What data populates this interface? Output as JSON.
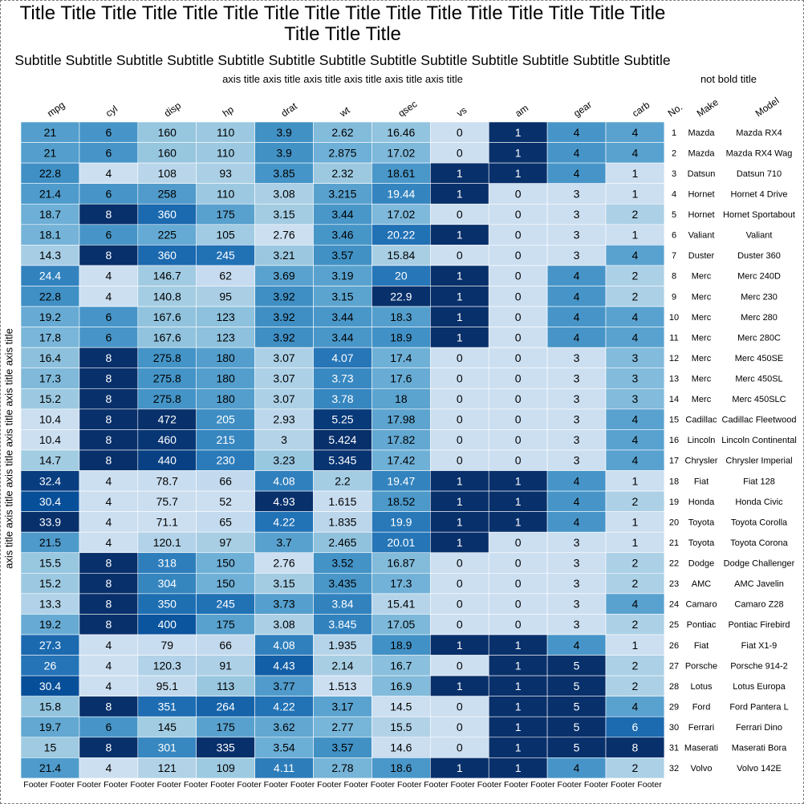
{
  "title": "Title Title Title Title Title Title Title Title Title Title Title Title Title Title Title Title Title Title Title",
  "subtitle": "Subtitle Subtitle Subtitle Subtitle Subtitle Subtitle Subtitle Subtitle Subtitle Subtitle Subtitle Subtitle Subtitle",
  "footer": "Footer Footer Footer Footer Footer Footer Footer Footer Footer Footer Footer Footer Footer Footer Footer Footer Footer Footer Footer Footer Footer Footer Footer Footer",
  "chart_data": {
    "type": "heatmap",
    "xlabel": "axis title axis title axis title axis title axis title axis title",
    "ylabel": "axis title axis title axis title axis title axis title axis title",
    "side_title": "not bold title",
    "columns": [
      "mpg",
      "cyl",
      "disp",
      "hp",
      "drat",
      "wt",
      "qsec",
      "vs",
      "am",
      "gear",
      "carb"
    ],
    "side_columns": [
      "No.",
      "Make",
      "Model"
    ],
    "colormap": "Blues",
    "rows": [
      {
        "no": "1",
        "make": "Mazda",
        "model": "Mazda RX4",
        "values": [
          "21",
          "6",
          "160",
          "110",
          "3.9",
          "2.62",
          "16.46",
          "0",
          "1",
          "4",
          "4"
        ]
      },
      {
        "no": "2",
        "make": "Mazda",
        "model": "Mazda RX4 Wag",
        "values": [
          "21",
          "6",
          "160",
          "110",
          "3.9",
          "2.875",
          "17.02",
          "0",
          "1",
          "4",
          "4"
        ]
      },
      {
        "no": "3",
        "make": "Datsun",
        "model": "Datsun 710",
        "values": [
          "22.8",
          "4",
          "108",
          "93",
          "3.85",
          "2.32",
          "18.61",
          "1",
          "1",
          "4",
          "1"
        ]
      },
      {
        "no": "4",
        "make": "Hornet",
        "model": "Hornet 4 Drive",
        "values": [
          "21.4",
          "6",
          "258",
          "110",
          "3.08",
          "3.215",
          "19.44",
          "1",
          "0",
          "3",
          "1"
        ]
      },
      {
        "no": "5",
        "make": "Hornet",
        "model": "Hornet Sportabout",
        "values": [
          "18.7",
          "8",
          "360",
          "175",
          "3.15",
          "3.44",
          "17.02",
          "0",
          "0",
          "3",
          "2"
        ]
      },
      {
        "no": "6",
        "make": "Valiant",
        "model": "Valiant",
        "values": [
          "18.1",
          "6",
          "225",
          "105",
          "2.76",
          "3.46",
          "20.22",
          "1",
          "0",
          "3",
          "1"
        ]
      },
      {
        "no": "7",
        "make": "Duster",
        "model": "Duster 360",
        "values": [
          "14.3",
          "8",
          "360",
          "245",
          "3.21",
          "3.57",
          "15.84",
          "0",
          "0",
          "3",
          "4"
        ]
      },
      {
        "no": "8",
        "make": "Merc",
        "model": "Merc 240D",
        "values": [
          "24.4",
          "4",
          "146.7",
          "62",
          "3.69",
          "3.19",
          "20",
          "1",
          "0",
          "4",
          "2"
        ]
      },
      {
        "no": "9",
        "make": "Merc",
        "model": "Merc 230",
        "values": [
          "22.8",
          "4",
          "140.8",
          "95",
          "3.92",
          "3.15",
          "22.9",
          "1",
          "0",
          "4",
          "2"
        ]
      },
      {
        "no": "10",
        "make": "Merc",
        "model": "Merc 280",
        "values": [
          "19.2",
          "6",
          "167.6",
          "123",
          "3.92",
          "3.44",
          "18.3",
          "1",
          "0",
          "4",
          "4"
        ]
      },
      {
        "no": "11",
        "make": "Merc",
        "model": "Merc 280C",
        "values": [
          "17.8",
          "6",
          "167.6",
          "123",
          "3.92",
          "3.44",
          "18.9",
          "1",
          "0",
          "4",
          "4"
        ]
      },
      {
        "no": "12",
        "make": "Merc",
        "model": "Merc 450SE",
        "values": [
          "16.4",
          "8",
          "275.8",
          "180",
          "3.07",
          "4.07",
          "17.4",
          "0",
          "0",
          "3",
          "3"
        ]
      },
      {
        "no": "13",
        "make": "Merc",
        "model": "Merc 450SL",
        "values": [
          "17.3",
          "8",
          "275.8",
          "180",
          "3.07",
          "3.73",
          "17.6",
          "0",
          "0",
          "3",
          "3"
        ]
      },
      {
        "no": "14",
        "make": "Merc",
        "model": "Merc 450SLC",
        "values": [
          "15.2",
          "8",
          "275.8",
          "180",
          "3.07",
          "3.78",
          "18",
          "0",
          "0",
          "3",
          "3"
        ]
      },
      {
        "no": "15",
        "make": "Cadillac",
        "model": "Cadillac Fleetwood",
        "values": [
          "10.4",
          "8",
          "472",
          "205",
          "2.93",
          "5.25",
          "17.98",
          "0",
          "0",
          "3",
          "4"
        ]
      },
      {
        "no": "16",
        "make": "Lincoln",
        "model": "Lincoln Continental",
        "values": [
          "10.4",
          "8",
          "460",
          "215",
          "3",
          "5.424",
          "17.82",
          "0",
          "0",
          "3",
          "4"
        ]
      },
      {
        "no": "17",
        "make": "Chrysler",
        "model": "Chrysler Imperial",
        "values": [
          "14.7",
          "8",
          "440",
          "230",
          "3.23",
          "5.345",
          "17.42",
          "0",
          "0",
          "3",
          "4"
        ]
      },
      {
        "no": "18",
        "make": "Fiat",
        "model": "Fiat 128",
        "values": [
          "32.4",
          "4",
          "78.7",
          "66",
          "4.08",
          "2.2",
          "19.47",
          "1",
          "1",
          "4",
          "1"
        ]
      },
      {
        "no": "19",
        "make": "Honda",
        "model": "Honda Civic",
        "values": [
          "30.4",
          "4",
          "75.7",
          "52",
          "4.93",
          "1.615",
          "18.52",
          "1",
          "1",
          "4",
          "2"
        ]
      },
      {
        "no": "20",
        "make": "Toyota",
        "model": "Toyota Corolla",
        "values": [
          "33.9",
          "4",
          "71.1",
          "65",
          "4.22",
          "1.835",
          "19.9",
          "1",
          "1",
          "4",
          "1"
        ]
      },
      {
        "no": "21",
        "make": "Toyota",
        "model": "Toyota Corona",
        "values": [
          "21.5",
          "4",
          "120.1",
          "97",
          "3.7",
          "2.465",
          "20.01",
          "1",
          "0",
          "3",
          "1"
        ]
      },
      {
        "no": "22",
        "make": "Dodge",
        "model": "Dodge Challenger",
        "values": [
          "15.5",
          "8",
          "318",
          "150",
          "2.76",
          "3.52",
          "16.87",
          "0",
          "0",
          "3",
          "2"
        ]
      },
      {
        "no": "23",
        "make": "AMC",
        "model": "AMC Javelin",
        "values": [
          "15.2",
          "8",
          "304",
          "150",
          "3.15",
          "3.435",
          "17.3",
          "0",
          "0",
          "3",
          "2"
        ]
      },
      {
        "no": "24",
        "make": "Camaro",
        "model": "Camaro Z28",
        "values": [
          "13.3",
          "8",
          "350",
          "245",
          "3.73",
          "3.84",
          "15.41",
          "0",
          "0",
          "3",
          "4"
        ]
      },
      {
        "no": "25",
        "make": "Pontiac",
        "model": "Pontiac Firebird",
        "values": [
          "19.2",
          "8",
          "400",
          "175",
          "3.08",
          "3.845",
          "17.05",
          "0",
          "0",
          "3",
          "2"
        ]
      },
      {
        "no": "26",
        "make": "Fiat",
        "model": "Fiat X1-9",
        "values": [
          "27.3",
          "4",
          "79",
          "66",
          "4.08",
          "1.935",
          "18.9",
          "1",
          "1",
          "4",
          "1"
        ]
      },
      {
        "no": "27",
        "make": "Porsche",
        "model": "Porsche 914-2",
        "values": [
          "26",
          "4",
          "120.3",
          "91",
          "4.43",
          "2.14",
          "16.7",
          "0",
          "1",
          "5",
          "2"
        ]
      },
      {
        "no": "28",
        "make": "Lotus",
        "model": "Lotus Europa",
        "values": [
          "30.4",
          "4",
          "95.1",
          "113",
          "3.77",
          "1.513",
          "16.9",
          "1",
          "1",
          "5",
          "2"
        ]
      },
      {
        "no": "29",
        "make": "Ford",
        "model": "Ford Pantera L",
        "values": [
          "15.8",
          "8",
          "351",
          "264",
          "4.22",
          "3.17",
          "14.5",
          "0",
          "1",
          "5",
          "4"
        ]
      },
      {
        "no": "30",
        "make": "Ferrari",
        "model": "Ferrari Dino",
        "values": [
          "19.7",
          "6",
          "145",
          "175",
          "3.62",
          "2.77",
          "15.5",
          "0",
          "1",
          "5",
          "6"
        ]
      },
      {
        "no": "31",
        "make": "Maserati",
        "model": "Maserati Bora",
        "values": [
          "15",
          "8",
          "301",
          "335",
          "3.54",
          "3.57",
          "14.6",
          "0",
          "1",
          "5",
          "8"
        ]
      },
      {
        "no": "32",
        "make": "Volvo",
        "model": "Volvo 142E",
        "values": [
          "21.4",
          "4",
          "121",
          "109",
          "4.11",
          "2.78",
          "18.6",
          "1",
          "1",
          "4",
          "2"
        ]
      }
    ]
  }
}
